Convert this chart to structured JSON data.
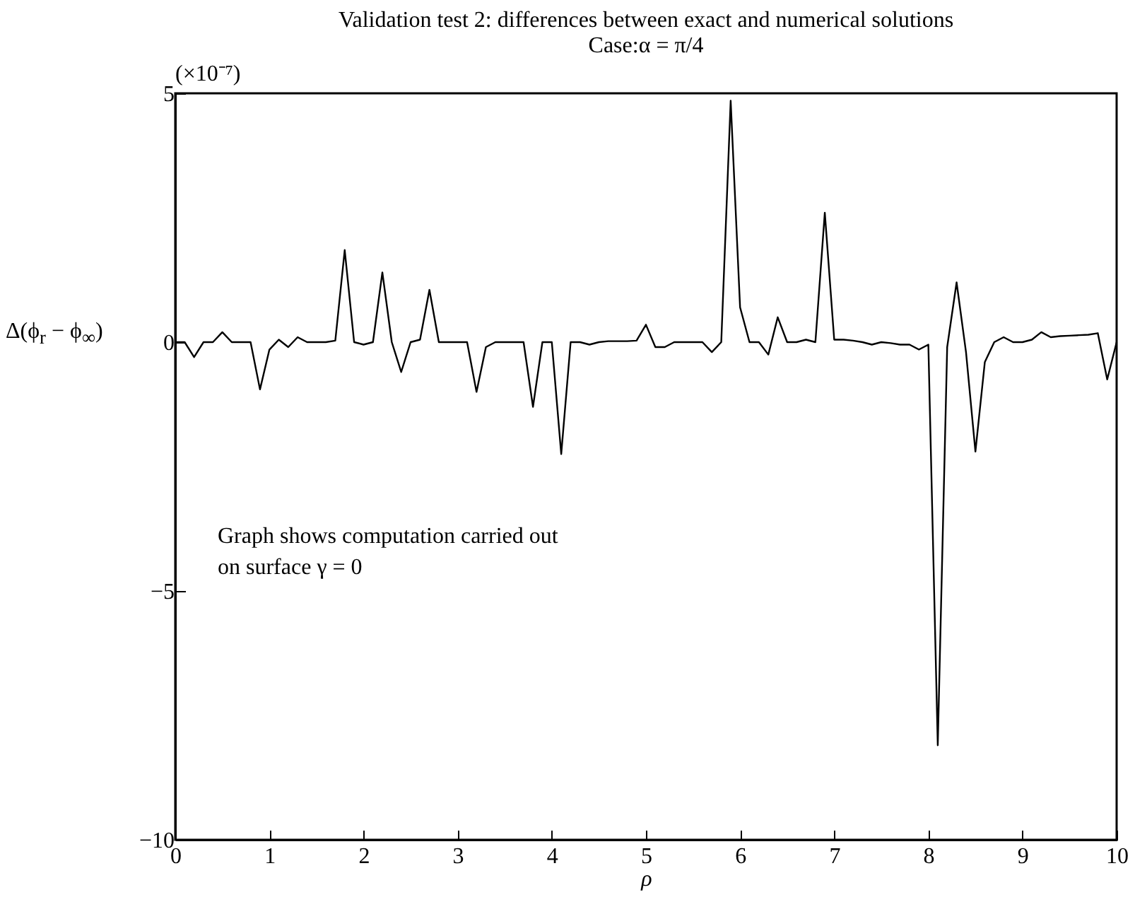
{
  "chart_data": {
    "type": "line",
    "title": "Validation test 2: differences between exact and numerical solutions",
    "subtitle": "Case:α = π/4",
    "xlabel": "ρ",
    "ylabel": "Δ(ϕ$_{r}$ − ϕ$_{∞}$)",
    "annotations": [
      "(×10⁻⁷)",
      "Graph shows computation carried out\non surface γ = 0"
    ],
    "x": [
      0,
      0.1,
      0.2,
      0.3,
      0.4,
      0.5,
      0.6,
      0.7,
      0.8,
      0.9,
      1.0,
      1.1,
      1.2,
      1.3,
      1.4,
      1.5,
      1.6,
      1.7,
      1.8,
      1.9,
      2.0,
      2.1,
      2.2,
      2.3,
      2.4,
      2.5,
      2.6,
      2.7,
      2.8,
      2.9,
      3.0,
      3.1,
      3.2,
      3.3,
      3.4,
      3.5,
      3.6,
      3.7,
      3.8,
      3.9,
      4.0,
      4.1,
      4.2,
      4.3,
      4.4,
      4.5,
      4.6,
      4.7,
      4.8,
      4.9,
      5.0,
      5.1,
      5.2,
      5.3,
      5.4,
      5.5,
      5.6,
      5.7,
      5.8,
      5.9,
      6.0,
      6.1,
      6.2,
      6.3,
      6.4,
      6.5,
      6.6,
      6.7,
      6.8,
      6.9,
      7.0,
      7.1,
      7.2,
      7.3,
      7.4,
      7.5,
      7.6,
      7.7,
      7.8,
      7.9,
      8.0,
      8.1,
      8.2,
      8.3,
      8.4,
      8.5,
      8.6,
      8.7,
      8.8,
      8.9,
      9.0,
      9.1,
      9.2,
      9.3,
      9.4,
      9.5,
      9.6,
      9.7,
      9.8,
      9.9,
      10.0
    ],
    "series": [
      {
        "color": "#000000",
        "values": [
          0,
          0,
          -0.3,
          0,
          0,
          0.2,
          0,
          0,
          0,
          -0.95,
          -0.15,
          0.05,
          -0.1,
          0.1,
          0,
          0,
          0,
          0.03,
          1.85,
          0,
          -0.05,
          0,
          1.4,
          0,
          -0.6,
          0,
          0.05,
          1.05,
          0,
          0,
          0,
          0,
          -1.0,
          -0.1,
          0,
          0,
          0,
          0,
          -1.3,
          0,
          0,
          -2.25,
          0,
          0,
          -0.05,
          0,
          0.02,
          0.02,
          0.02,
          0.03,
          0.35,
          -0.1,
          -0.1,
          0,
          0,
          0,
          0,
          -0.2,
          0,
          4.85,
          0.7,
          0,
          0,
          -0.25,
          0.5,
          0,
          0,
          0.05,
          0,
          2.6,
          0.05,
          0.05,
          0.03,
          0,
          -0.05,
          0,
          -0.02,
          -0.05,
          -0.05,
          -0.15,
          -0.05,
          -8.1,
          -0.1,
          1.2,
          -0.2,
          -2.2,
          -0.4,
          0,
          0.1,
          0,
          0,
          0.05,
          0.2,
          0.1,
          0.12,
          0.13,
          0.14,
          0.15,
          0.18,
          -0.75,
          0
        ]
      }
    ],
    "xlim": [
      0,
      10
    ],
    "xticks": [
      0,
      1,
      2,
      3,
      4,
      5,
      6,
      7,
      8,
      9,
      10
    ],
    "ylim": [
      -10,
      5
    ],
    "yticks": [
      {
        "value": -10,
        "label": "−10"
      },
      {
        "value": -5,
        "label": "−5"
      },
      0,
      5
    ]
  }
}
